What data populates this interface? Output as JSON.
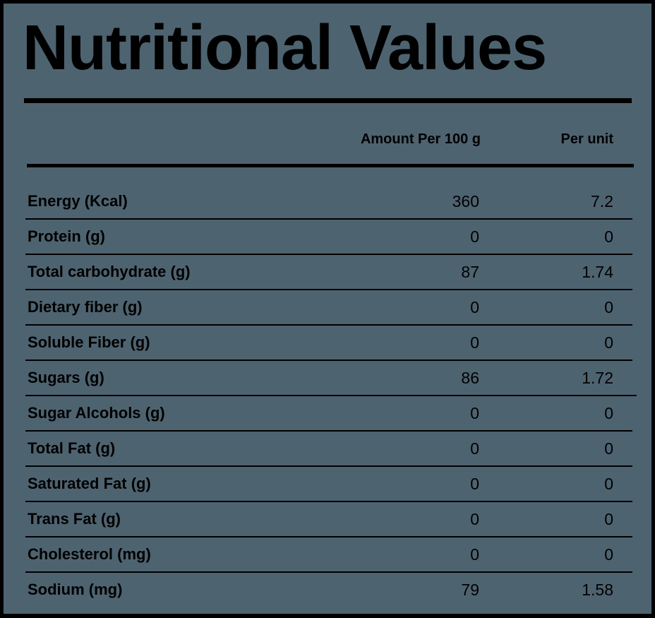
{
  "title": "Nutritional Values",
  "headers": {
    "amount": "Amount Per 100 g",
    "per_unit": "Per unit"
  },
  "rows": [
    {
      "name": "Energy (Kcal)",
      "amount": "360",
      "per_unit": "7.2"
    },
    {
      "name": "Protein (g)",
      "amount": "0",
      "per_unit": "0"
    },
    {
      "name": "Total carbohydrate (g)",
      "amount": "87",
      "per_unit": "1.74"
    },
    {
      "name": "Dietary fiber (g)",
      "amount": "0",
      "per_unit": "0"
    },
    {
      "name": "Soluble Fiber (g)",
      "amount": "0",
      "per_unit": "0"
    },
    {
      "name": "Sugars (g)",
      "amount": "86",
      "per_unit": "1.72"
    },
    {
      "name": "Sugar Alcohols (g)",
      "amount": "0",
      "per_unit": "0"
    },
    {
      "name": "Total Fat (g)",
      "amount": "0",
      "per_unit": "0"
    },
    {
      "name": "Saturated Fat (g)",
      "amount": "0",
      "per_unit": "0"
    },
    {
      "name": "Trans Fat (g)",
      "amount": "0",
      "per_unit": "0"
    },
    {
      "name": "Cholesterol (mg)",
      "amount": "0",
      "per_unit": "0"
    },
    {
      "name": "Sodium (mg)",
      "amount": "79",
      "per_unit": "1.58"
    }
  ],
  "colors": {
    "background": "#4e6370",
    "frame": "#000000",
    "text": "#000000"
  }
}
